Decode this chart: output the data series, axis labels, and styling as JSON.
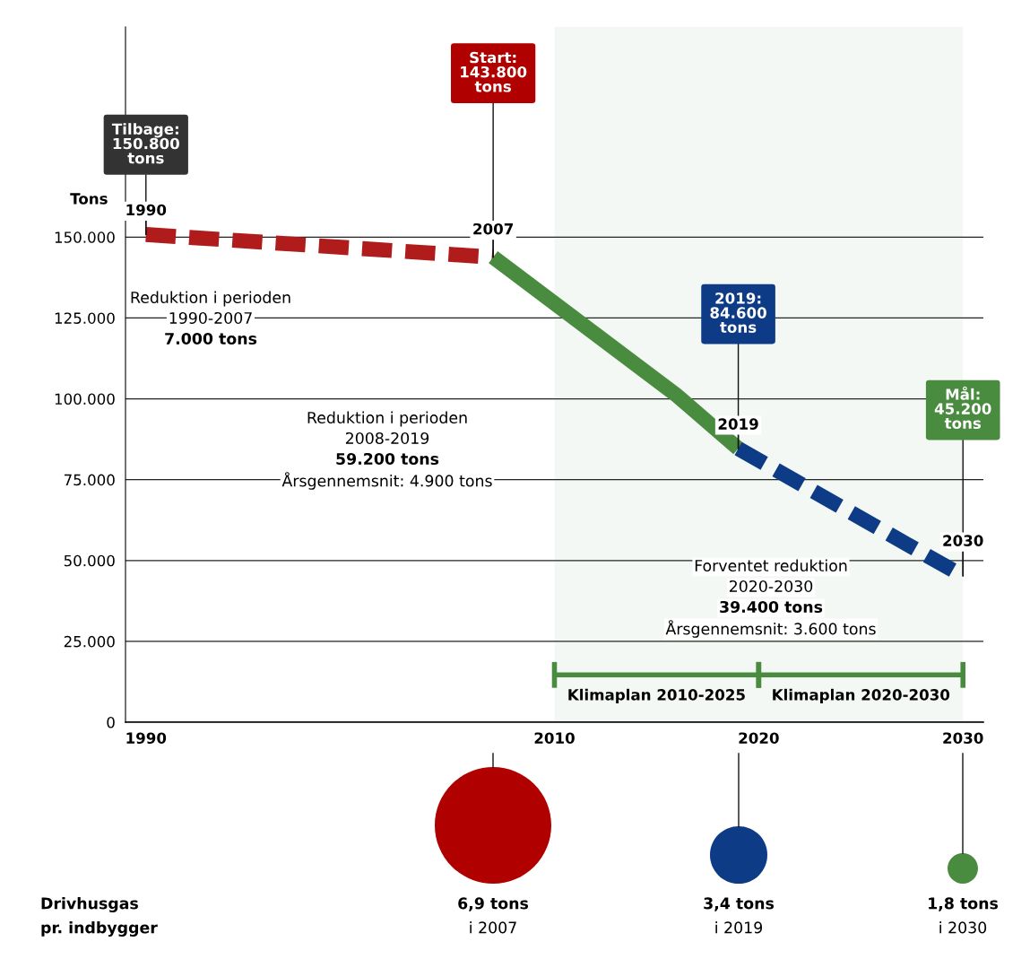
{
  "chart_data": [
    {
      "type": "line",
      "ylabel": "Tons",
      "xlim": [
        1989,
        2031
      ],
      "xticks": [
        1990,
        2010,
        2020,
        2030
      ],
      "ylim": [
        0,
        215000
      ],
      "yticks": [
        0,
        {
          "value": 25000,
          "label": "25.000"
        },
        {
          "value": 50000,
          "label": "50.000"
        },
        {
          "value": 75000,
          "label": "75.000"
        },
        {
          "value": 100000,
          "label": "100.000"
        },
        {
          "value": 125000,
          "label": "125.000"
        },
        {
          "value": 150000,
          "label": "150.000"
        }
      ],
      "grid": "y",
      "series": [
        {
          "color": "#b01c1c",
          "x": [
            1990,
            2007
          ],
          "values": [
            150800,
            143800
          ],
          "line_style": "dashed"
        },
        {
          "color": "#4a8c3f",
          "x": [
            2007,
            2016,
            2019
          ],
          "values": [
            143800,
            101000,
            84600
          ],
          "line_style": "solid"
        },
        {
          "color": "#0d3b86",
          "x": [
            2019,
            2030
          ],
          "values": [
            84600,
            45200
          ],
          "line_style": "dashed"
        }
      ],
      "bands": [
        {
          "axis": "x",
          "from": 2010,
          "to": 2020,
          "label": "Klimaplan 2010-2025",
          "color": "#4a8c3f"
        },
        {
          "axis": "x",
          "from": 2020,
          "to": 2030,
          "label": "Klimaplan 2020-2030",
          "color": "#4a8c3f"
        }
      ],
      "annotations": [
        {
          "text": "Tilbage:\n150.800\ntons",
          "x": 1990,
          "y": 150800
        },
        {
          "text": "Start:\n143.800\ntons",
          "x": 2007,
          "y": 143800
        },
        {
          "text": "2019:\n84.600\ntons",
          "x": 2019,
          "y": 84600
        },
        {
          "text": "Mål:\n45.200\ntons",
          "x": 2030,
          "y": 45200
        },
        {
          "text": "1990",
          "x": 1990,
          "y": 150800
        },
        {
          "text": "2007",
          "x": 2007,
          "y": 143800
        },
        {
          "text": "2019",
          "x": 2019,
          "y": 84600
        },
        {
          "text": "2030",
          "x": 2030,
          "y": 45200
        },
        "Reduktion i perioden\n1990-2007\n7.000 tons",
        "Reduktion i perioden\n2008-2019\n59.200 tons\nÅrsgennemsnit: 4.900 tons",
        "Forventet reduktion\n2020-2030\n39.400 tons\nÅrsgennemsnit: 3.600 tons"
      ]
    },
    {
      "type": "other",
      "annotations": [
        "Drivhusgas\npr. indbygger",
        "6,9 tons\ni 2007",
        "3,4 tons\ni 2019",
        "1,8 tons\ni 2030"
      ]
    }
  ]
}
